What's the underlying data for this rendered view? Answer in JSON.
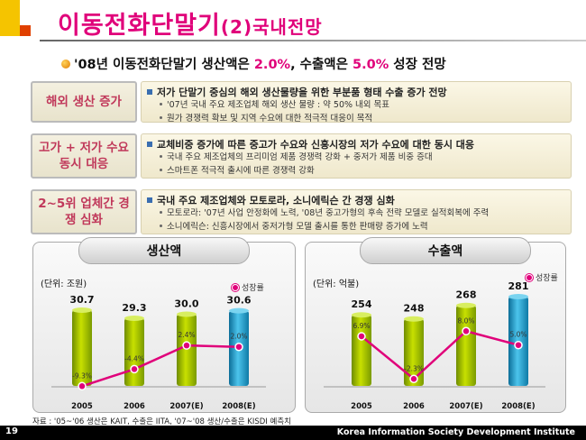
{
  "header": {
    "title": "이동전화단말기",
    "title_sub": "(2)국내전망"
  },
  "headline": {
    "prefix": "'08년 이동전화단말기 생산액은 ",
    "value1": "2.0%",
    "middle": ", 수출액은 ",
    "value2": "5.0%",
    "suffix": " 성장 전망"
  },
  "rows": [
    {
      "label": "해외 생산 증가",
      "main": "저가 단말기 중심의 해외 생산물량을  위한 부분품 형태 수출 증가 전망",
      "subs": [
        "'07년 국내 주요 제조업체 해외 생산 물량 : 약 50% 내외 목표",
        "원가 경쟁력 확보 및 지역 수요에 대한 적극적 대응이 목적"
      ]
    },
    {
      "label": "고가 + 저가 수요 동시 대응",
      "main": "교체비중 증가에 따른 중고가 수요와 신흥시장의 저가 수요에 대한 동시 대응",
      "subs": [
        "국내 주요 제조업체의 프리미엄 제품 경쟁력 강화 + 중저가 제품 비중 증대",
        "스마트폰 적극적 출시에 따른 경쟁력 강화"
      ]
    },
    {
      "label": "2~5위 업체간 경쟁 심화",
      "main": "국내 주요 제조업체와 모토로라, 소니에릭슨 간 경쟁 심화",
      "subs": [
        "모토로라: '07년 사업 안정화에 노력, '08년 중고가형의 후속 전략 모델로 실적회복에 주력",
        "소니에릭슨: 신흥시장에서 중저가형 모델 출시를 통한 판매량 증가에 노력"
      ]
    }
  ],
  "charts": {
    "production": {
      "title": "생산액",
      "unit": "(단위: 조원)",
      "legend": "성장률"
    },
    "export": {
      "title": "수출액",
      "unit": "(단위: 억불)",
      "legend": "성장률"
    }
  },
  "chart_data": [
    {
      "type": "bar",
      "title": "생산액",
      "categories": [
        "2005",
        "2006",
        "2007(E)",
        "2008(E)"
      ],
      "values": [
        30.7,
        29.3,
        30.0,
        30.6
      ],
      "value_labels": [
        "30.7",
        "29.3",
        "30.0",
        "30.6"
      ],
      "growth": [
        -9.3,
        -4.4,
        2.4,
        2.0
      ],
      "growth_labels": [
        "-9.3%",
        "-4.4%",
        "2.4%",
        "2.0%"
      ],
      "ylabel": "(단위: 조원)",
      "legend": "성장률"
    },
    {
      "type": "bar",
      "title": "수출액",
      "categories": [
        "2005",
        "2006",
        "2007(E)",
        "2008(E)"
      ],
      "values": [
        254,
        248,
        268,
        281
      ],
      "value_labels": [
        "254",
        "248",
        "268",
        "281"
      ],
      "growth": [
        6.9,
        -2.3,
        8.0,
        5.0
      ],
      "growth_labels": [
        "6.9%",
        "-2.3%",
        "8.0%",
        "5.0%"
      ],
      "ylabel": "(단위: 억불)",
      "legend": "성장률"
    }
  ],
  "footer": {
    "source": "자료 : '05~'06 생산은 KAIT, 수출은 IITA, '07~'08 생산/수출은 KISDI 예측치",
    "page": "19",
    "org": "Korea Information Society Development Institute"
  },
  "colors": {
    "accent": "#e0007a",
    "bar_green": "#9ab800",
    "bar_blue": "#1a9cc8"
  }
}
